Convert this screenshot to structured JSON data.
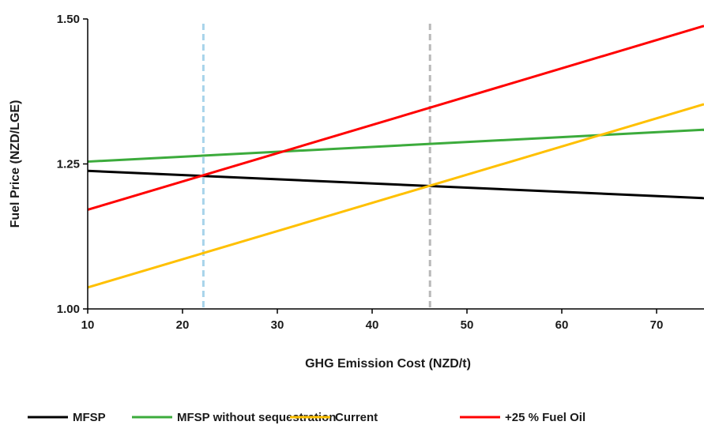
{
  "chart_data": {
    "type": "line",
    "xlabel": "GHG Emission Cost (NZD/t)",
    "ylabel": "Fuel Price (NZD/LGE)",
    "xlim": [
      10,
      75
    ],
    "ylim": [
      1.0,
      1.5
    ],
    "xticks": [
      10,
      20,
      30,
      40,
      50,
      60,
      70
    ],
    "yticks": [
      1.0,
      1.25,
      1.5
    ],
    "ytick_labels": [
      "1.00",
      "1.25",
      "1.50"
    ],
    "grid": false,
    "legend_position": "bottom",
    "series": [
      {
        "name": "MFSP",
        "color": "#000000",
        "x": [
          10,
          75
        ],
        "y": [
          1.238,
          1.191
        ]
      },
      {
        "name": "MFSP without sequestration",
        "color": "#3cab3c",
        "x": [
          10,
          75
        ],
        "y": [
          1.254,
          1.309
        ]
      },
      {
        "name": "Current",
        "color": "#ffc000",
        "x": [
          10,
          75
        ],
        "y": [
          1.037,
          1.353
        ]
      },
      {
        "name": "+25 % Fuel Oil",
        "color": "#ff0000",
        "x": [
          10,
          75
        ],
        "y": [
          1.171,
          1.488
        ]
      }
    ],
    "vlines": [
      {
        "x": 22.2,
        "color": "#a8d4ea",
        "style": "dashed"
      },
      {
        "x": 46.1,
        "color": "#b8b8b8",
        "style": "dashed"
      }
    ]
  }
}
